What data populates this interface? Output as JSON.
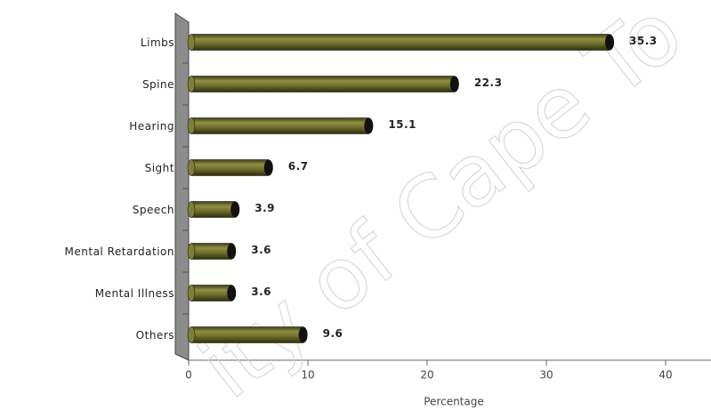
{
  "chart_data": {
    "type": "bar",
    "orientation": "horizontal",
    "categories": [
      "Limbs",
      "Spine",
      "Hearing",
      "Sight",
      "Speech",
      "Mental Retardation",
      "Mental Illness",
      "Others"
    ],
    "values": [
      35.3,
      22.3,
      15.1,
      6.7,
      3.9,
      3.6,
      3.6,
      9.6
    ],
    "color": "#6e6e2c",
    "xlabel": "Percentage",
    "xlim": [
      0,
      44
    ],
    "xticks": [
      0,
      10,
      20,
      30,
      40
    ],
    "watermark": "ity of Cape To"
  }
}
